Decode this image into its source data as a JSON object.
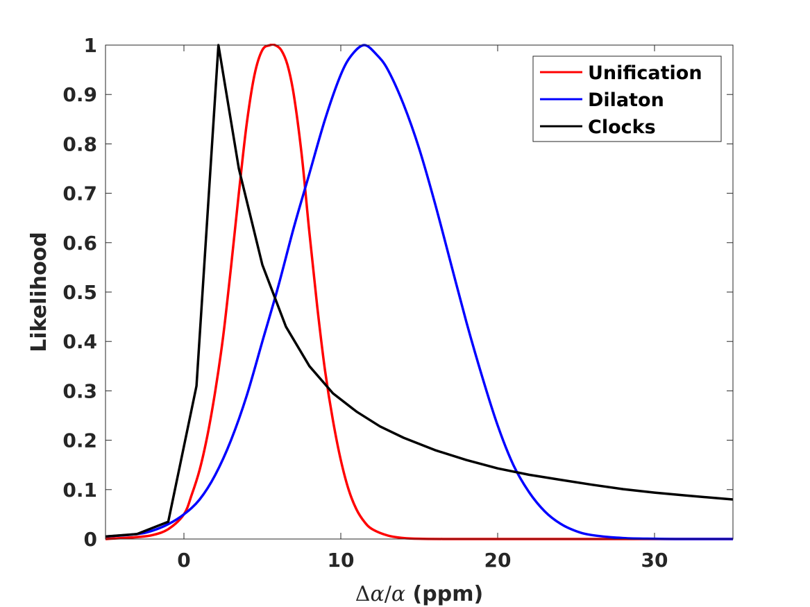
{
  "chart_data": {
    "type": "line",
    "title": "",
    "xlabel": {
      "delta": "Δ",
      "alpha1": "α",
      "slash": "/",
      "alpha2": "α",
      "unit": " (ppm)"
    },
    "ylabel": "Likelihood",
    "xlim": [
      -5,
      35
    ],
    "ylim": [
      0,
      1
    ],
    "xticks": [
      0,
      10,
      20,
      30
    ],
    "xtick_labels": [
      "0",
      "10",
      "20",
      "30"
    ],
    "yticks": [
      0,
      0.1,
      0.2,
      0.3,
      0.4,
      0.5,
      0.6,
      0.7,
      0.8,
      0.9,
      1
    ],
    "ytick_labels": [
      "0",
      "0.1",
      "0.2",
      "0.3",
      "0.4",
      "0.5",
      "0.6",
      "0.7",
      "0.8",
      "0.9",
      "1"
    ],
    "legend_position": "top-right",
    "series": [
      {
        "name": "Unification",
        "color": "#ff0000",
        "x": [
          -5,
          -3,
          -2,
          -1,
          0,
          0.5,
          1,
          1.5,
          2,
          2.5,
          3,
          3.5,
          4,
          4.5,
          5,
          5.5,
          5.8,
          6.2,
          6.6,
          7,
          7.5,
          8,
          8.5,
          9,
          9.5,
          10,
          10.5,
          11,
          11.5,
          12,
          13,
          14,
          15,
          17,
          20,
          25,
          30,
          35
        ],
        "values": [
          0.0,
          0.004,
          0.008,
          0.02,
          0.05,
          0.09,
          0.14,
          0.21,
          0.3,
          0.41,
          0.55,
          0.7,
          0.84,
          0.94,
          0.99,
          1.0,
          1.0,
          0.99,
          0.96,
          0.9,
          0.78,
          0.62,
          0.47,
          0.34,
          0.24,
          0.16,
          0.1,
          0.06,
          0.035,
          0.02,
          0.007,
          0.002,
          0.0005,
          0.0,
          0.0,
          0.0,
          0.0,
          0.0
        ]
      },
      {
        "name": "Dilaton",
        "color": "#0000ff",
        "x": [
          -5,
          -3,
          -2,
          -1,
          0,
          1,
          2,
          3,
          4,
          5,
          6,
          7,
          8,
          9,
          10,
          10.7,
          11.5,
          12.3,
          13,
          14,
          15,
          16,
          17,
          18,
          19,
          20,
          21,
          22,
          23,
          24,
          25,
          26,
          28,
          30,
          32,
          35
        ],
        "values": [
          0.005,
          0.01,
          0.017,
          0.03,
          0.05,
          0.08,
          0.13,
          0.2,
          0.29,
          0.4,
          0.51,
          0.63,
          0.74,
          0.85,
          0.94,
          0.98,
          1.0,
          0.98,
          0.95,
          0.88,
          0.79,
          0.68,
          0.56,
          0.44,
          0.33,
          0.23,
          0.15,
          0.095,
          0.056,
          0.031,
          0.016,
          0.008,
          0.002,
          0.0005,
          0.0,
          0.0
        ]
      },
      {
        "name": "Clocks",
        "color": "#000000",
        "x": [
          -5,
          -3,
          -1,
          0.8,
          2.2,
          3.5,
          5,
          6.5,
          8,
          9.5,
          11,
          12.5,
          14,
          16,
          18,
          20,
          22,
          24,
          26,
          28,
          30,
          32,
          35
        ],
        "values": [
          0.005,
          0.01,
          0.035,
          0.31,
          1.0,
          0.75,
          0.555,
          0.43,
          0.35,
          0.295,
          0.258,
          0.228,
          0.205,
          0.18,
          0.16,
          0.143,
          0.13,
          0.12,
          0.11,
          0.101,
          0.094,
          0.088,
          0.08
        ]
      }
    ]
  }
}
